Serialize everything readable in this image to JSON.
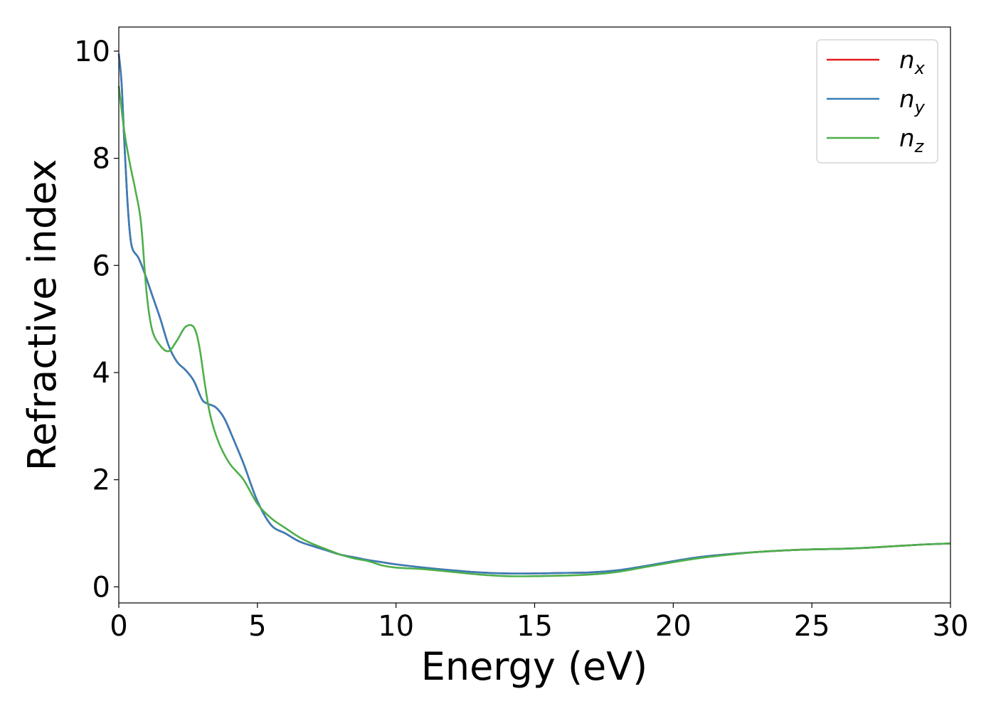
{
  "chart_data": {
    "type": "line",
    "title": "",
    "xlabel": "Energy (eV)",
    "ylabel": "Refractive index",
    "xlim": [
      0,
      30
    ],
    "ylim": [
      -0.3,
      10.45
    ],
    "xticks": [
      0,
      5,
      10,
      15,
      20,
      25,
      30
    ],
    "yticks": [
      0,
      2,
      4,
      6,
      8,
      10
    ],
    "grid": false,
    "legend_position": "top-right",
    "series": [
      {
        "name": "n",
        "subscript": "x",
        "color": "#e41a1c",
        "x": [
          0,
          0.1,
          0.2,
          0.3,
          0.4,
          0.5,
          0.7,
          0.9,
          1.2,
          1.5,
          1.8,
          2.1,
          2.4,
          2.7,
          3.0,
          3.2,
          3.5,
          3.8,
          4.1,
          4.5,
          5.0,
          5.5,
          6.0,
          6.5,
          7.0,
          7.5,
          8.0,
          8.5,
          9.0,
          9.5,
          10.0,
          11,
          12,
          13,
          14,
          15,
          16,
          17,
          18,
          19,
          20,
          21,
          22,
          23,
          24,
          25,
          26,
          27,
          28,
          29,
          30
        ],
        "values": [
          9.95,
          9.4,
          8.3,
          7.3,
          6.6,
          6.3,
          6.15,
          5.9,
          5.45,
          5.0,
          4.5,
          4.2,
          4.05,
          3.85,
          3.5,
          3.42,
          3.35,
          3.15,
          2.8,
          2.3,
          1.6,
          1.15,
          1.0,
          0.85,
          0.76,
          0.68,
          0.6,
          0.55,
          0.5,
          0.46,
          0.42,
          0.36,
          0.31,
          0.27,
          0.25,
          0.25,
          0.26,
          0.27,
          0.31,
          0.39,
          0.48,
          0.56,
          0.61,
          0.65,
          0.68,
          0.7,
          0.71,
          0.73,
          0.76,
          0.79,
          0.81
        ]
      },
      {
        "name": "n",
        "subscript": "y",
        "color": "#377eb8",
        "x": [
          0,
          0.1,
          0.2,
          0.3,
          0.4,
          0.5,
          0.7,
          0.9,
          1.2,
          1.5,
          1.8,
          2.1,
          2.4,
          2.7,
          3.0,
          3.2,
          3.5,
          3.8,
          4.1,
          4.5,
          5.0,
          5.5,
          6.0,
          6.5,
          7.0,
          7.5,
          8.0,
          8.5,
          9.0,
          9.5,
          10.0,
          11,
          12,
          13,
          14,
          15,
          16,
          17,
          18,
          19,
          20,
          21,
          22,
          23,
          24,
          25,
          26,
          27,
          28,
          29,
          30
        ],
        "values": [
          9.95,
          9.4,
          8.3,
          7.3,
          6.6,
          6.3,
          6.15,
          5.9,
          5.45,
          5.0,
          4.5,
          4.2,
          4.05,
          3.85,
          3.5,
          3.42,
          3.35,
          3.15,
          2.8,
          2.3,
          1.6,
          1.15,
          1.0,
          0.85,
          0.76,
          0.68,
          0.6,
          0.55,
          0.5,
          0.46,
          0.42,
          0.36,
          0.31,
          0.27,
          0.25,
          0.25,
          0.26,
          0.27,
          0.31,
          0.39,
          0.48,
          0.56,
          0.61,
          0.65,
          0.68,
          0.7,
          0.71,
          0.73,
          0.76,
          0.79,
          0.81
        ]
      },
      {
        "name": "n",
        "subscript": "z",
        "color": "#4daf4a",
        "x": [
          0,
          0.2,
          0.4,
          0.6,
          0.8,
          1.0,
          1.2,
          1.5,
          1.8,
          2.1,
          2.4,
          2.7,
          2.9,
          3.1,
          3.3,
          3.6,
          4.0,
          4.5,
          5.0,
          5.5,
          6.0,
          6.5,
          7.0,
          7.5,
          8.0,
          8.5,
          9.0,
          9.5,
          10.0,
          11,
          12,
          13,
          14,
          15,
          16,
          17,
          18,
          19,
          20,
          21,
          22,
          23,
          24,
          25,
          26,
          27,
          28,
          29,
          30
        ],
        "values": [
          9.35,
          8.5,
          7.9,
          7.4,
          6.8,
          5.5,
          4.8,
          4.5,
          4.4,
          4.6,
          4.85,
          4.85,
          4.5,
          3.8,
          3.2,
          2.7,
          2.3,
          2.0,
          1.55,
          1.28,
          1.1,
          0.93,
          0.8,
          0.7,
          0.6,
          0.53,
          0.48,
          0.4,
          0.36,
          0.33,
          0.28,
          0.23,
          0.2,
          0.2,
          0.21,
          0.23,
          0.28,
          0.37,
          0.46,
          0.54,
          0.6,
          0.65,
          0.68,
          0.7,
          0.71,
          0.73,
          0.76,
          0.79,
          0.81
        ]
      }
    ]
  }
}
